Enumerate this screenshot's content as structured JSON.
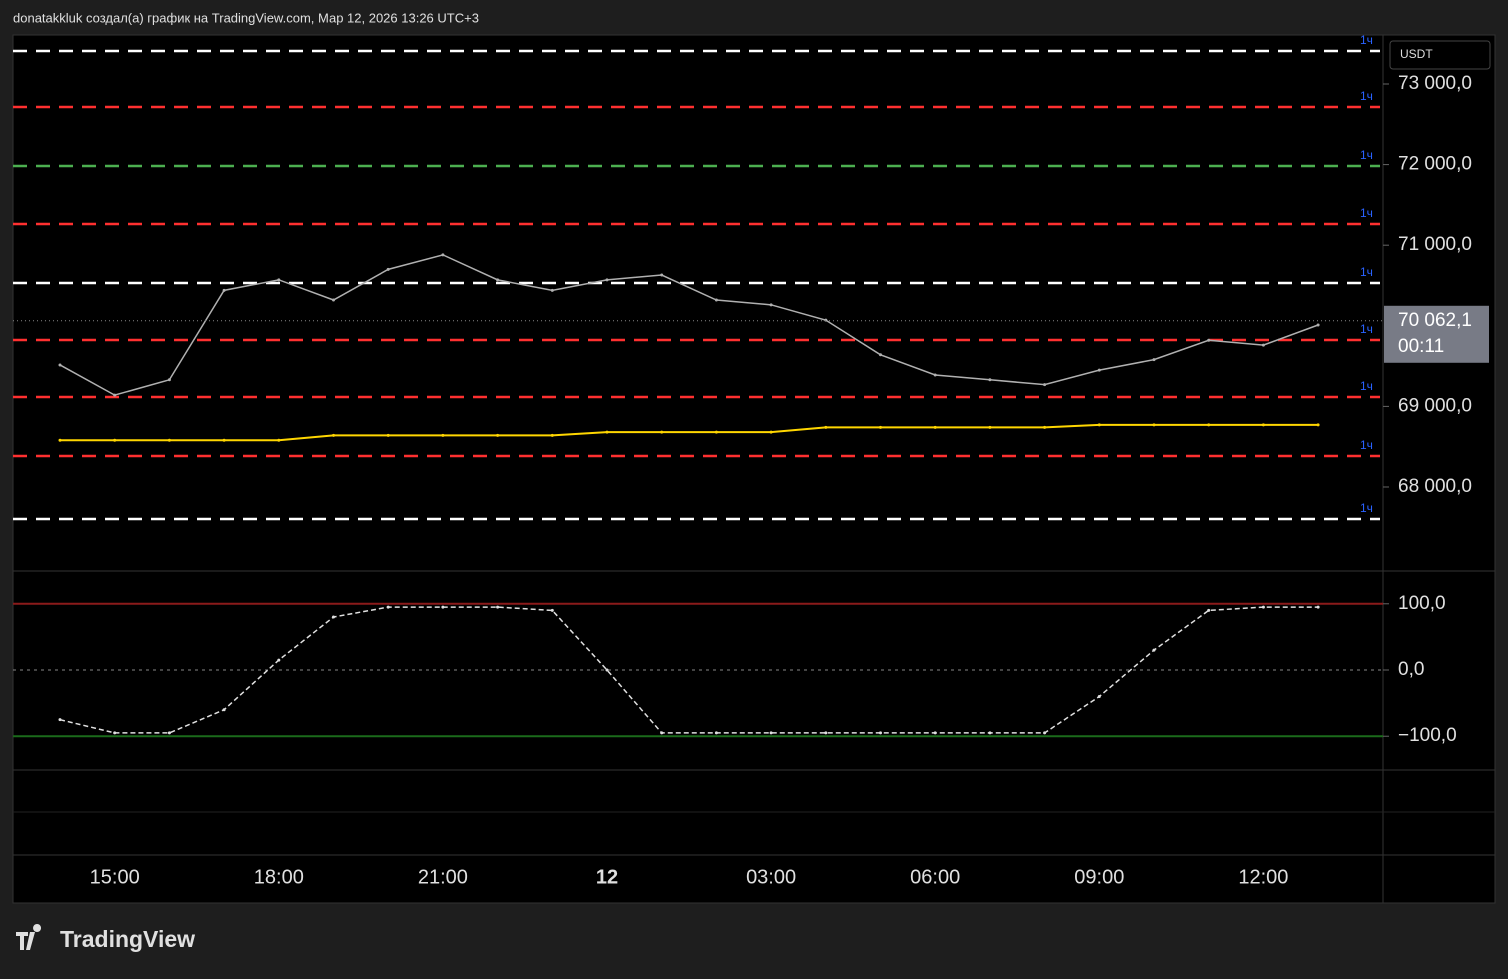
{
  "header": {
    "text": "donatakkluk создал(а) график на TradingView.com, Мар 12, 2026 13:26 UTC+3"
  },
  "footer": {
    "logo": "TradingView"
  },
  "chart_data": [
    {
      "type": "line",
      "currency": "USDT",
      "categories": [
        null,
        "15:00",
        null,
        null,
        "18:00",
        null,
        null,
        "21:00",
        null,
        null,
        "12",
        null,
        null,
        "03:00",
        null,
        null,
        "06:00",
        null,
        null,
        "09:00",
        null,
        null,
        "12:00",
        null
      ],
      "series": [
        {
          "color": "#b0b0b0",
          "values": [
            69514,
            69140,
            69330,
            70440,
            70570,
            70320,
            70700,
            70880,
            70570,
            70440,
            70570,
            70630,
            70320,
            70260,
            70070,
            69640,
            69390,
            69330,
            69270,
            69450,
            69580,
            69820,
            69760,
            70010
          ]
        },
        {
          "color": "#ffd600",
          "values": [
            68580,
            68580,
            68580,
            68580,
            68580,
            68640,
            68640,
            68640,
            68640,
            68640,
            68680,
            68680,
            68680,
            68680,
            68740,
            68740,
            68740,
            68740,
            68740,
            68770,
            68770,
            68770,
            68770,
            68770
          ]
        }
      ],
      "levels": [
        {
          "value": 73409,
          "color": "#ffffff",
          "label": "1ч"
        },
        {
          "value": 72715,
          "color": "#ff3030",
          "label": "1ч"
        },
        {
          "value": 71983,
          "color": "#4caf50",
          "label": "1ч"
        },
        {
          "value": 71263,
          "color": "#ff3030",
          "label": "1ч"
        },
        {
          "value": 70531,
          "color": "#ffffff",
          "label": "1ч"
        },
        {
          "value": 69824,
          "color": "#ff3030",
          "label": "1ч"
        },
        {
          "value": 69117,
          "color": "#ff3030",
          "label": "1ч"
        },
        {
          "value": 68385,
          "color": "#ff3030",
          "label": "1ч"
        },
        {
          "value": 67603,
          "color": "#ffffff",
          "label": "1ч"
        }
      ],
      "last_price": {
        "value": 70062.1,
        "label": "70 062,1"
      },
      "countdown": "00:11",
      "ylim": [
        66970,
        73608
      ],
      "yticks": [
        {
          "value": 68000,
          "label": "68 000,0"
        },
        {
          "value": 69000,
          "label": "69 000,0"
        },
        {
          "value": 71000,
          "label": "71 000,0"
        },
        {
          "value": 72000,
          "label": "72 000,0"
        },
        {
          "value": 73000,
          "label": "73 000,0"
        }
      ]
    },
    {
      "type": "line",
      "series": [
        {
          "color": "#e0e0e0",
          "values": [
            -75,
            -95,
            -95,
            -60,
            15,
            80,
            95,
            95,
            95,
            90,
            0,
            -95,
            -95,
            -95,
            -95,
            -95,
            -95,
            -95,
            -95,
            -40,
            30,
            90,
            95,
            95
          ]
        }
      ],
      "ylim": [
        -151,
        148
      ],
      "yticks": [
        {
          "value": 100,
          "label": "100,0"
        },
        {
          "value": 0,
          "label": "0,0"
        },
        {
          "value": -100,
          "label": "−100,0"
        }
      ]
    }
  ]
}
